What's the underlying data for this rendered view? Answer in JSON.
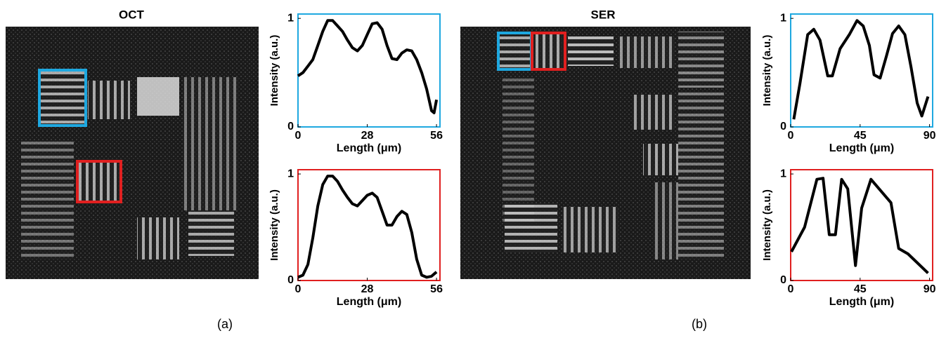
{
  "panels": [
    {
      "title": "OCT",
      "label": "(a)"
    },
    {
      "title": "SER",
      "label": "(b)"
    }
  ],
  "chart_data": [
    {
      "type": "line",
      "frame_color": "#1ea8e0",
      "xlabel": "Length (μm)",
      "ylabel": "Intensity (a.u.)",
      "x": [
        0,
        2,
        4,
        6,
        8,
        10,
        12,
        14,
        16,
        18,
        20,
        22,
        24,
        26,
        28,
        30,
        32,
        34,
        36,
        38,
        40,
        42,
        44,
        46,
        48,
        50,
        52,
        54,
        55,
        56
      ],
      "series": [
        {
          "color": "#000000",
          "values": [
            0.47,
            0.5,
            0.56,
            0.62,
            0.75,
            0.88,
            0.98,
            0.98,
            0.93,
            0.88,
            0.8,
            0.73,
            0.7,
            0.75,
            0.85,
            0.95,
            0.96,
            0.9,
            0.75,
            0.63,
            0.62,
            0.68,
            0.71,
            0.7,
            0.62,
            0.5,
            0.35,
            0.15,
            0.13,
            0.25
          ]
        }
      ],
      "xlim": [
        0,
        57.4
      ],
      "ylim": [
        0,
        1.04
      ],
      "xticks": [
        0,
        28,
        56
      ],
      "yticks": [
        0,
        1
      ]
    },
    {
      "type": "line",
      "frame_color": "#e02020",
      "xlabel": "Length (μm)",
      "ylabel": "Intensity (a.u.)",
      "x": [
        0,
        2,
        4,
        6,
        8,
        10,
        12,
        14,
        16,
        18,
        20,
        22,
        24,
        26,
        28,
        30,
        32,
        34,
        36,
        38,
        40,
        42,
        44,
        46,
        48,
        50,
        52,
        54,
        56
      ],
      "series": [
        {
          "color": "#000000",
          "values": [
            0.03,
            0.05,
            0.15,
            0.4,
            0.7,
            0.9,
            0.98,
            0.98,
            0.93,
            0.85,
            0.78,
            0.72,
            0.7,
            0.75,
            0.8,
            0.82,
            0.78,
            0.65,
            0.52,
            0.52,
            0.6,
            0.65,
            0.62,
            0.45,
            0.2,
            0.05,
            0.03,
            0.04,
            0.08
          ]
        }
      ],
      "xlim": [
        0,
        57.4
      ],
      "ylim": [
        0,
        1.04
      ],
      "xticks": [
        0,
        28,
        56
      ],
      "yticks": [
        0,
        1
      ]
    },
    {
      "type": "line",
      "frame_color": "#1ea8e0",
      "xlabel": "Length (μm)",
      "ylabel": "Intensity (a.u.)",
      "x": [
        2,
        6,
        11,
        15,
        19,
        24,
        27,
        32,
        38,
        43,
        47,
        51,
        54,
        58,
        62,
        66,
        70,
        74,
        78,
        82,
        85,
        89
      ],
      "series": [
        {
          "color": "#000000",
          "values": [
            0.07,
            0.4,
            0.85,
            0.9,
            0.8,
            0.47,
            0.47,
            0.72,
            0.85,
            0.98,
            0.93,
            0.75,
            0.48,
            0.45,
            0.65,
            0.86,
            0.93,
            0.85,
            0.55,
            0.22,
            0.1,
            0.28
          ]
        }
      ],
      "xlim": [
        0,
        92
      ],
      "ylim": [
        0,
        1.04
      ],
      "xticks": [
        0,
        45,
        90
      ],
      "yticks": [
        0,
        1
      ]
    },
    {
      "type": "line",
      "frame_color": "#e02020",
      "xlabel": "Length (μm)",
      "ylabel": "Intensity (a.u.)",
      "x": [
        0.5,
        9,
        17,
        21,
        25,
        29,
        33,
        37,
        42,
        46,
        52,
        65,
        70,
        76,
        89
      ],
      "series": [
        {
          "color": "#000000",
          "values": [
            0.27,
            0.5,
            0.95,
            0.96,
            0.43,
            0.43,
            0.95,
            0.86,
            0.14,
            0.68,
            0.95,
            0.73,
            0.3,
            0.25,
            0.07
          ]
        }
      ],
      "xlim": [
        0,
        92
      ],
      "ylim": [
        0,
        1.04
      ],
      "xticks": [
        0,
        45,
        90
      ],
      "yticks": [
        0,
        1
      ]
    }
  ]
}
